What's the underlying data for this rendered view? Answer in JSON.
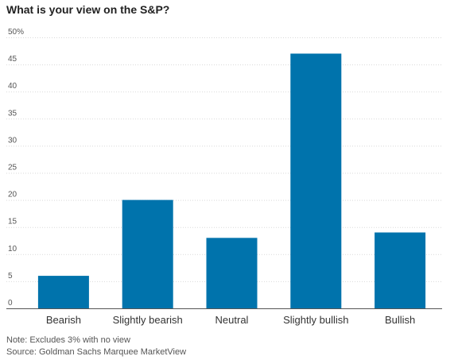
{
  "chart_data": {
    "type": "bar",
    "title": "What is your view on the S&P?",
    "categories": [
      "Bearish",
      "Slightly bearish",
      "Neutral",
      "Slightly bullish",
      "Bullish"
    ],
    "values": [
      6,
      20,
      13,
      47,
      14
    ],
    "ylim": [
      0,
      50
    ],
    "yticks": [
      "0",
      "5",
      "10",
      "15",
      "20",
      "25",
      "30",
      "35",
      "40",
      "45",
      "50%"
    ],
    "grid": true,
    "bar_color": "#0073ac",
    "xlabel": "",
    "ylabel": ""
  },
  "footer": {
    "note": "Note: Excludes 3% with no view",
    "source": "Source: Goldman Sachs Marquee MarketView"
  }
}
